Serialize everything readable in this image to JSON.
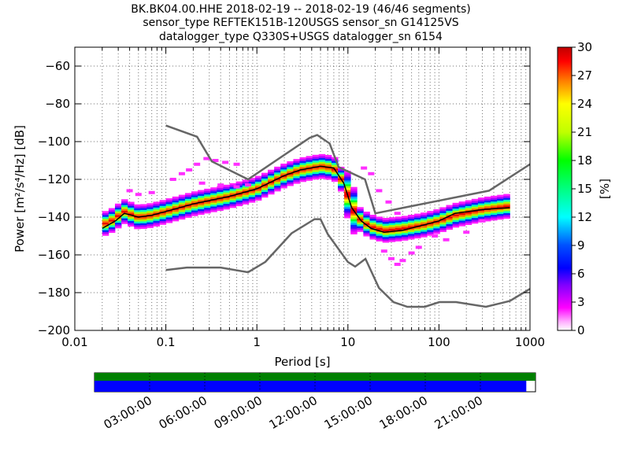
{
  "chart_data": {
    "type": "heatmap",
    "title_lines": [
      "BK.BK04.00.HHE   2018-02-19 -- 2018-02-19  (46/46 segments)",
      "sensor_type REFTEK151B-120USGS sensor_sn G14125VS",
      "datalogger_type Q330S+USGS datalogger_sn 6154"
    ],
    "xlabel": "Period [s]",
    "ylabel": "Power [m²/s⁴/Hz] [dB]",
    "x_scale": "log",
    "xlim": [
      0.01,
      1000
    ],
    "ylim": [
      -200,
      -50
    ],
    "x_ticks": [
      {
        "v": 0.01,
        "label": "0.01"
      },
      {
        "v": 0.1,
        "label": "0.1"
      },
      {
        "v": 1,
        "label": "1"
      },
      {
        "v": 10,
        "label": "10"
      },
      {
        "v": 100,
        "label": "100"
      },
      {
        "v": 1000,
        "label": "1000"
      }
    ],
    "y_ticks": [
      {
        "v": -60,
        "label": "−60"
      },
      {
        "v": -80,
        "label": "−80"
      },
      {
        "v": -100,
        "label": "−100"
      },
      {
        "v": -120,
        "label": "−120"
      },
      {
        "v": -140,
        "label": "−140"
      },
      {
        "v": -160,
        "label": "−160"
      },
      {
        "v": -180,
        "label": "−180"
      },
      {
        "v": -200,
        "label": "−200"
      }
    ],
    "colorbar": {
      "label": "[%]",
      "range": [
        0,
        30
      ],
      "ticks": [
        "0",
        "3",
        "6",
        "9",
        "12",
        "15",
        "18",
        "21",
        "24",
        "27",
        "30"
      ]
    },
    "nhnm": [
      [
        0.1,
        -91.5
      ],
      [
        0.22,
        -97.4
      ],
      [
        0.32,
        -110.5
      ],
      [
        0.8,
        -120
      ],
      [
        3.8,
        -98
      ],
      [
        4.6,
        -96.5
      ],
      [
        6.3,
        -101
      ],
      [
        7.9,
        -113.5
      ],
      [
        15.4,
        -120
      ],
      [
        20,
        -138
      ],
      [
        354.8,
        -126
      ],
      [
        1000,
        -112
      ]
    ],
    "nlnm": [
      [
        0.1,
        -168
      ],
      [
        0.17,
        -166.7
      ],
      [
        0.4,
        -166.7
      ],
      [
        0.8,
        -169.2
      ],
      [
        1.24,
        -163.7
      ],
      [
        2.4,
        -148.6
      ],
      [
        4.3,
        -141.1
      ],
      [
        5,
        -141.1
      ],
      [
        6,
        -149
      ],
      [
        10,
        -163.8
      ],
      [
        12,
        -166.2
      ],
      [
        15.6,
        -162.1
      ],
      [
        21.9,
        -177.5
      ],
      [
        31.6,
        -185
      ],
      [
        45,
        -187.5
      ],
      [
        70,
        -187.5
      ],
      [
        101,
        -185
      ],
      [
        154,
        -185
      ],
      [
        328,
        -187.5
      ],
      [
        600,
        -184.4
      ],
      [
        1000,
        -178
      ]
    ],
    "median": [
      [
        0.02,
        -146
      ],
      [
        0.028,
        -142
      ],
      [
        0.035,
        -138
      ],
      [
        0.05,
        -140
      ],
      [
        0.07,
        -139
      ],
      [
        0.1,
        -137
      ],
      [
        0.2,
        -133
      ],
      [
        0.5,
        -129
      ],
      [
        1,
        -125
      ],
      [
        2,
        -118
      ],
      [
        3,
        -115
      ],
      [
        5,
        -113
      ],
      [
        7,
        -114
      ],
      [
        9,
        -122
      ],
      [
        11,
        -135
      ],
      [
        14,
        -142
      ],
      [
        18,
        -146
      ],
      [
        25,
        -148
      ],
      [
        40,
        -147
      ],
      [
        70,
        -144
      ],
      [
        100,
        -142
      ],
      [
        150,
        -138
      ],
      [
        300,
        -136
      ],
      [
        600,
        -135
      ]
    ],
    "band_center": [
      [
        0.02,
        -144
      ],
      [
        0.025,
        -142
      ],
      [
        0.035,
        -137
      ],
      [
        0.05,
        -140
      ],
      [
        0.07,
        -139
      ],
      [
        0.1,
        -137
      ],
      [
        0.2,
        -133
      ],
      [
        0.5,
        -129
      ],
      [
        1,
        -125
      ],
      [
        2,
        -118
      ],
      [
        3,
        -115
      ],
      [
        5,
        -113
      ],
      [
        7,
        -114
      ],
      [
        9,
        -122
      ],
      [
        11,
        -135
      ],
      [
        14,
        -142
      ],
      [
        18,
        -145
      ],
      [
        25,
        -147
      ],
      [
        40,
        -146
      ],
      [
        70,
        -144
      ],
      [
        100,
        -142
      ],
      [
        150,
        -139
      ],
      [
        300,
        -136
      ],
      [
        600,
        -134
      ]
    ],
    "pdf_outliers": [
      {
        "p": 0.12,
        "db": -120,
        "pct": 2
      },
      {
        "p": 0.15,
        "db": -117,
        "pct": 2
      },
      {
        "p": 0.18,
        "db": -115,
        "pct": 2
      },
      {
        "p": 0.22,
        "db": -112,
        "pct": 2
      },
      {
        "p": 0.28,
        "db": -109,
        "pct": 2
      },
      {
        "p": 0.35,
        "db": -110,
        "pct": 2
      },
      {
        "p": 0.45,
        "db": -111,
        "pct": 2
      },
      {
        "p": 0.6,
        "db": -112,
        "pct": 2
      },
      {
        "p": 0.25,
        "db": -122,
        "pct": 2
      },
      {
        "p": 0.4,
        "db": -123,
        "pct": 2
      },
      {
        "p": 0.6,
        "db": -124,
        "pct": 2
      },
      {
        "p": 0.8,
        "db": -123,
        "pct": 2
      },
      {
        "p": 0.04,
        "db": -126,
        "pct": 2
      },
      {
        "p": 0.05,
        "db": -128,
        "pct": 2
      },
      {
        "p": 0.07,
        "db": -127,
        "pct": 2
      },
      {
        "p": 30,
        "db": -162,
        "pct": 2
      },
      {
        "p": 35,
        "db": -165,
        "pct": 2
      },
      {
        "p": 40,
        "db": -163,
        "pct": 2
      },
      {
        "p": 50,
        "db": -159,
        "pct": 2
      },
      {
        "p": 60,
        "db": -156,
        "pct": 2
      },
      {
        "p": 25,
        "db": -158,
        "pct": 2
      },
      {
        "p": 22,
        "db": -126,
        "pct": 2
      },
      {
        "p": 28,
        "db": -132,
        "pct": 2
      },
      {
        "p": 35,
        "db": -138,
        "pct": 2
      },
      {
        "p": 15,
        "db": -114,
        "pct": 2
      },
      {
        "p": 18,
        "db": -117,
        "pct": 2
      },
      {
        "p": 90,
        "db": -150,
        "pct": 2
      },
      {
        "p": 120,
        "db": -152,
        "pct": 2
      },
      {
        "p": 200,
        "db": -148,
        "pct": 2
      },
      {
        "p": 300,
        "db": -142,
        "pct": 2
      }
    ],
    "timeline": {
      "ticks": [
        "03:00:00",
        "06:00:00",
        "09:00:00",
        "12:00:00",
        "15:00:00",
        "18:00:00",
        "21:00:00"
      ],
      "data_coverage_hours": 23.5,
      "colors": {
        "available": "#008000",
        "data": "#0000ff"
      }
    }
  }
}
